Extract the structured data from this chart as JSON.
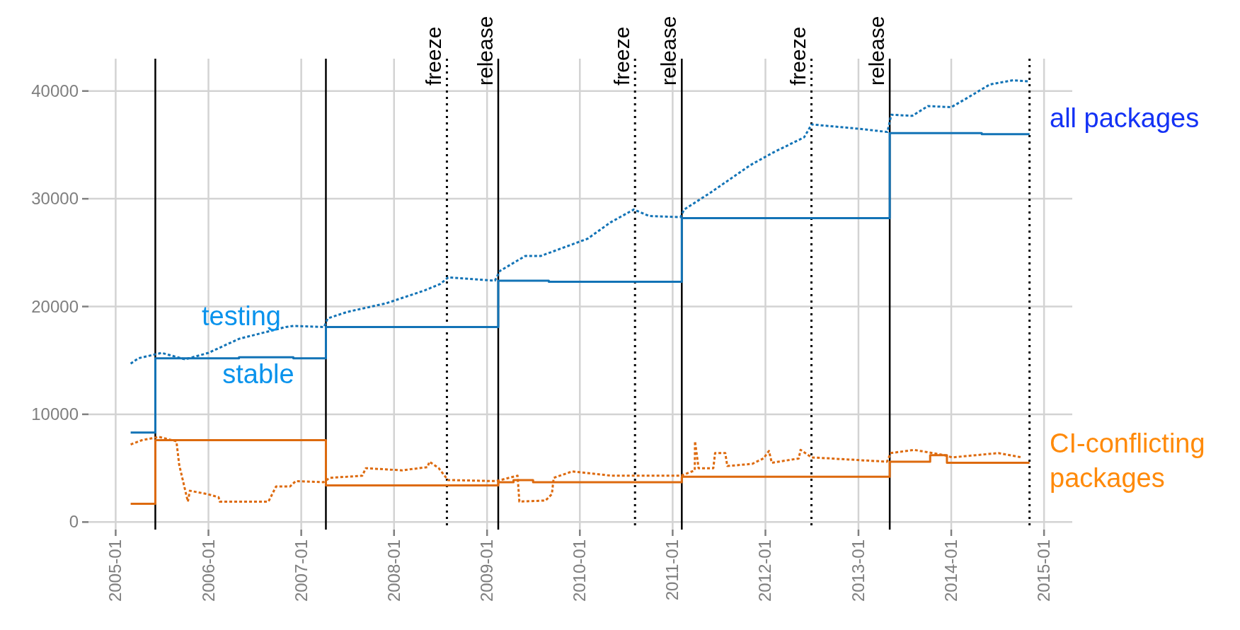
{
  "chart_data": {
    "type": "line",
    "xlim": [
      "2004-09-16",
      "2015-04-22"
    ],
    "xticks": [
      "2005-01",
      "2006-01",
      "2007-01",
      "2008-01",
      "2009-01",
      "2010-01",
      "2011-01",
      "2012-01",
      "2013-01",
      "2014-01",
      "2015-01"
    ],
    "ylim": [
      -700,
      43000
    ],
    "yticks": [
      0,
      10000,
      20000,
      30000,
      40000
    ],
    "grid": true,
    "series": [
      {
        "type": "step",
        "color": "#1273b6",
        "line_style": "solid",
        "x": [
          "2005-03",
          "2005-06-06",
          "2006-05",
          "2006-12",
          "2007-04-08",
          "2009-02-14",
          "2009-09",
          "2011-02-06",
          "2013-05-04",
          "2014-05",
          "2014-11-05"
        ],
        "values": [
          8300,
          15200,
          15300,
          15200,
          18100,
          22400,
          22300,
          28200,
          36100,
          36000,
          36000
        ]
      },
      {
        "type": "line",
        "color": "#1273b6",
        "line_style": "dotted",
        "x": [
          "2005-03",
          "2005-04",
          "2005-07",
          "2005-10",
          "2006-01",
          "2006-05",
          "2006-11",
          "2006-12",
          "2007-04-01",
          "2007-04-15",
          "2007-07",
          "2007-12",
          "2008-05",
          "2008-07",
          "2008-08",
          "2009-02-01",
          "2009-02-20",
          "2009-06",
          "2009-08",
          "2010-02",
          "2010-05",
          "2010-08",
          "2010-10",
          "2011-02-01",
          "2011-02-15",
          "2011-06",
          "2011-11",
          "2012-02",
          "2012-06",
          "2012-07",
          "2013-01",
          "2013-04-25",
          "2013-05-10",
          "2013-08",
          "2013-10",
          "2014-01",
          "2014-03",
          "2014-06",
          "2014-09",
          "2014-11"
        ],
        "values": [
          14700,
          15200,
          15700,
          15100,
          15700,
          17000,
          18100,
          18200,
          18100,
          18900,
          19500,
          20300,
          21500,
          22100,
          22700,
          22400,
          23300,
          24700,
          24700,
          26300,
          27800,
          29000,
          28400,
          28300,
          29000,
          30600,
          33100,
          34300,
          35700,
          36900,
          36500,
          36200,
          37800,
          37700,
          38600,
          38500,
          39300,
          40600,
          41000,
          40900
        ]
      },
      {
        "type": "step",
        "color": "#dd6a0e",
        "line_style": "solid",
        "x": [
          "2005-03",
          "2005-06-06",
          "2007-04-08",
          "2009-02-14",
          "2009-04-15",
          "2009-07",
          "2011-02-06",
          "2013-05-04",
          "2013-10-10",
          "2013-12-15",
          "2014-11-05"
        ],
        "values": [
          1700,
          7600,
          3400,
          3700,
          3900,
          3700,
          4200,
          5600,
          6200,
          5500,
          5500
        ]
      },
      {
        "type": "line",
        "color": "#dd6a0e",
        "line_style": "dotted",
        "x": [
          "2005-03",
          "2005-04-15",
          "2005-06-20",
          "2005-08-28",
          "2005-09-08",
          "2005-10-12",
          "2005-10-20",
          "2005-12-28",
          "2006-02-10",
          "2006-02-14",
          "2006-08-25",
          "2006-09-24",
          "2006-11-18",
          "2006-12-10",
          "2007-03-29",
          "2007-04-23",
          "2007-08-29",
          "2007-09-12",
          "2008-02-03",
          "2008-05-12",
          "2008-05-19",
          "2008-06-25",
          "2008-07-31",
          "2009-02-06",
          "2009-05-01",
          "2009-05-08",
          "2009-08-19",
          "2009-09-13",
          "2009-09-20",
          "2009-12-02",
          "2010-05-05",
          "2010-12-02",
          "2011-02-03",
          "2011-03-29",
          "2011-03-30",
          "2011-04-13",
          "2011-06-10",
          "2011-06-17",
          "2011-07-27",
          "2011-08-04",
          "2011-11-10",
          "2011-12-24",
          "2012-01-15",
          "2012-01-26",
          "2012-05-11",
          "2012-05-18",
          "2012-07-01",
          "2013-04-23",
          "2013-05-08",
          "2013-08-08",
          "2013-12-06",
          "2014-01-04",
          "2014-07-05",
          "2014-10-05"
        ],
        "values": [
          7200,
          7600,
          7900,
          7500,
          5300,
          1900,
          2900,
          2600,
          2300,
          1900,
          1900,
          3300,
          3300,
          3800,
          3700,
          4100,
          4300,
          5000,
          4800,
          5100,
          5600,
          5000,
          3900,
          3800,
          4300,
          1900,
          2000,
          2600,
          4100,
          4700,
          4300,
          4300,
          4300,
          4800,
          7500,
          5000,
          5000,
          6400,
          6400,
          5200,
          5400,
          5900,
          6600,
          5500,
          5900,
          6700,
          6000,
          5600,
          6400,
          6700,
          6200,
          6000,
          6400,
          6000
        ]
      }
    ],
    "ref_lines": [
      {
        "axis": "x",
        "value": "2005-06-06",
        "color": "#000000",
        "line_style": "solid"
      },
      {
        "axis": "x",
        "value": "2007-04-08",
        "color": "#000000",
        "line_style": "solid"
      },
      {
        "axis": "x",
        "value": "2008-07-27",
        "label": "freeze",
        "color": "#000000",
        "line_style": "dotted"
      },
      {
        "axis": "x",
        "value": "2009-02-14",
        "label": "release",
        "color": "#000000",
        "line_style": "solid"
      },
      {
        "axis": "x",
        "value": "2010-08-06",
        "label": "freeze",
        "color": "#000000",
        "line_style": "dotted"
      },
      {
        "axis": "x",
        "value": "2011-02-06",
        "label": "release",
        "color": "#000000",
        "line_style": "solid"
      },
      {
        "axis": "x",
        "value": "2012-06-30",
        "label": "freeze",
        "color": "#000000",
        "line_style": "dotted"
      },
      {
        "axis": "x",
        "value": "2013-05-04",
        "label": "release",
        "color": "#000000",
        "line_style": "solid"
      },
      {
        "axis": "x",
        "value": "2014-11-05",
        "color": "#000000",
        "line_style": "dotted"
      }
    ],
    "annotations": [
      "testing",
      "stable",
      "all packages",
      "CI-conflicting packages"
    ]
  }
}
